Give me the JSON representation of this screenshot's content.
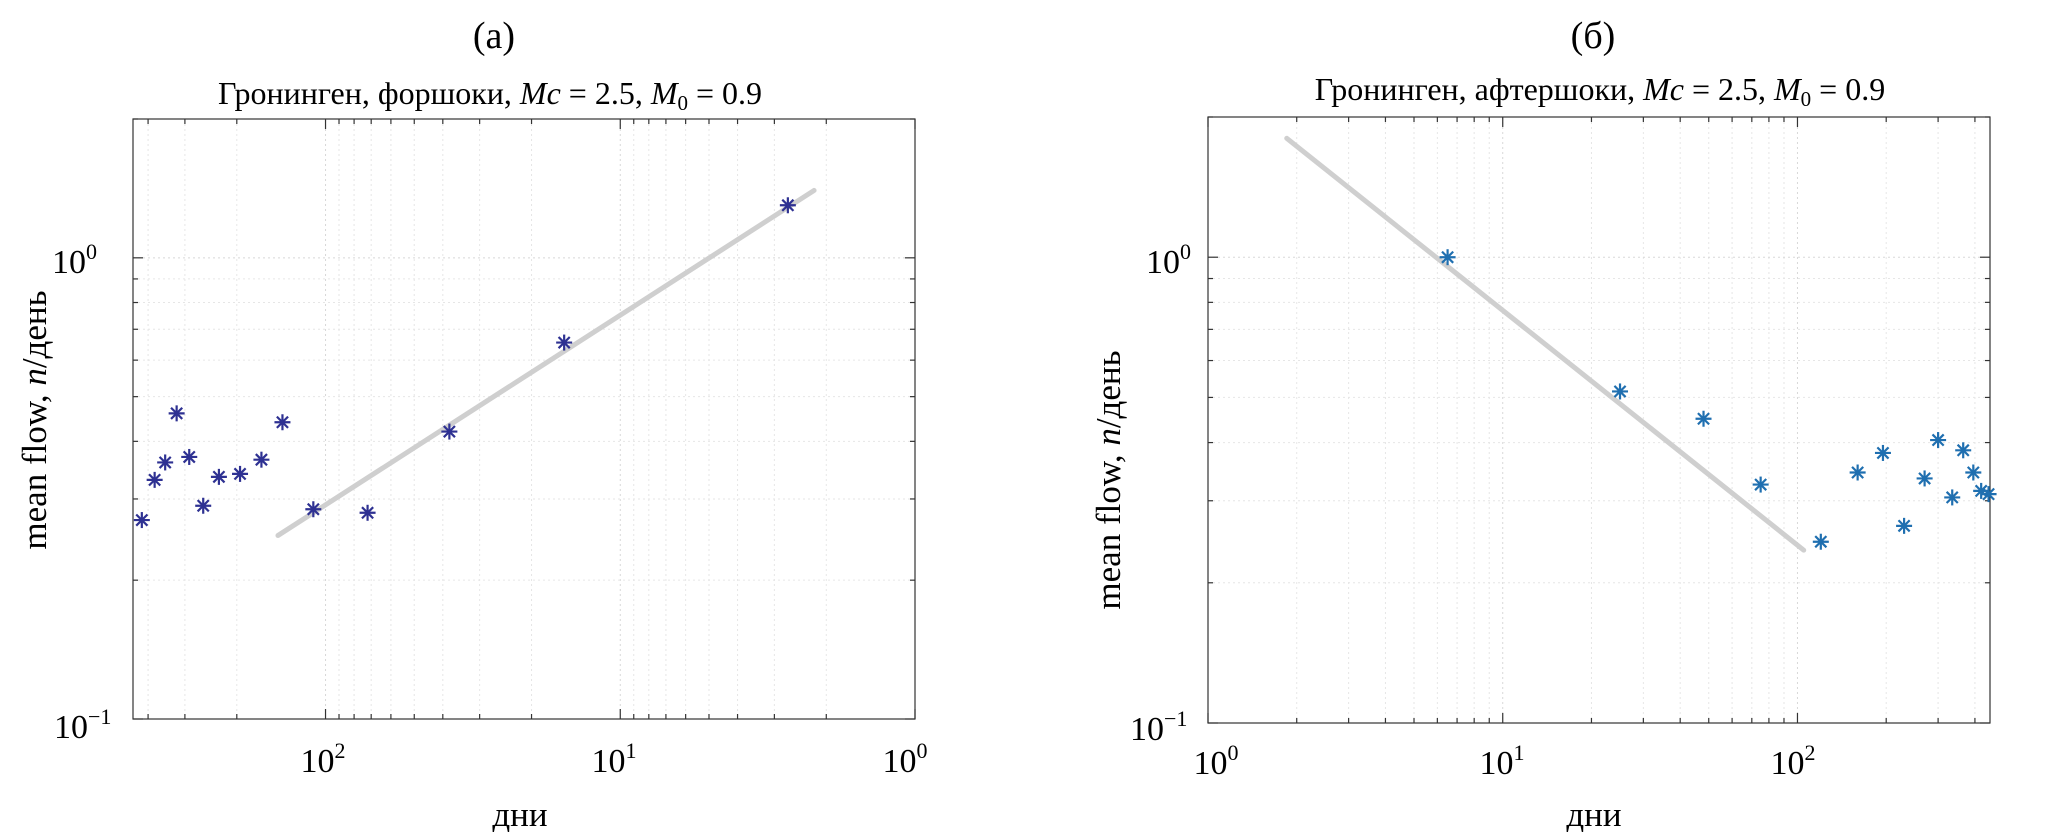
{
  "chart_data": [
    {
      "type": "scatter",
      "panel_label": "(а)",
      "title_parts": [
        "Гронинген, форшоки, ",
        "Mc",
        " = 2.5, ",
        "M",
        "0",
        " = 0.9"
      ],
      "xlabel": "дни",
      "ylabel_parts": [
        "mean flow, ",
        "n",
        "/день"
      ],
      "x_scale": "log",
      "x_reversed": true,
      "xlim": [
        450,
        1
      ],
      "y_scale": "log",
      "ylim": [
        0.1,
        2.0
      ],
      "x_ticks": [
        {
          "value": 100,
          "base": "10",
          "exp": "2"
        },
        {
          "value": 10,
          "base": "10",
          "exp": "1"
        },
        {
          "value": 1,
          "base": "10",
          "exp": "0"
        }
      ],
      "y_ticks": [
        {
          "value": 0.1,
          "base": "10",
          "exp": "−1"
        },
        {
          "value": 1,
          "base": "10",
          "exp": "0"
        }
      ],
      "grid": true,
      "marker_color": "#2e3192",
      "fit_color": "#cfcfcf",
      "points": [
        {
          "x": 420,
          "y": 0.27
        },
        {
          "x": 380,
          "y": 0.33
        },
        {
          "x": 350,
          "y": 0.36
        },
        {
          "x": 320,
          "y": 0.46
        },
        {
          "x": 290,
          "y": 0.37
        },
        {
          "x": 260,
          "y": 0.29
        },
        {
          "x": 230,
          "y": 0.335
        },
        {
          "x": 195,
          "y": 0.34
        },
        {
          "x": 165,
          "y": 0.365
        },
        {
          "x": 140,
          "y": 0.44
        },
        {
          "x": 110,
          "y": 0.285
        },
        {
          "x": 72,
          "y": 0.28
        },
        {
          "x": 38,
          "y": 0.42
        },
        {
          "x": 15.5,
          "y": 0.655
        },
        {
          "x": 2.7,
          "y": 1.3
        }
      ],
      "fit_line": [
        {
          "x": 145,
          "y": 0.25
        },
        {
          "x": 2.2,
          "y": 1.4
        }
      ]
    },
    {
      "type": "scatter",
      "panel_label": "(б)",
      "title_parts": [
        "Гронинген, афтершоки, ",
        "Mc",
        " = 2.5, ",
        "M",
        "0",
        " = 0.9"
      ],
      "xlabel": "дни",
      "ylabel_parts": [
        "mean flow, ",
        "n",
        "/день"
      ],
      "x_scale": "log",
      "x_reversed": false,
      "xlim": [
        1,
        450
      ],
      "y_scale": "log",
      "ylim": [
        0.1,
        2.0
      ],
      "x_ticks": [
        {
          "value": 1,
          "base": "10",
          "exp": "0"
        },
        {
          "value": 10,
          "base": "10",
          "exp": "1"
        },
        {
          "value": 100,
          "base": "10",
          "exp": "2"
        }
      ],
      "y_ticks": [
        {
          "value": 0.1,
          "base": "10",
          "exp": "−1"
        },
        {
          "value": 1,
          "base": "10",
          "exp": "0"
        }
      ],
      "grid": true,
      "marker_color": "#1f6fb0",
      "fit_color": "#cfcfcf",
      "points": [
        {
          "x": 6.5,
          "y": 1.0
        },
        {
          "x": 25,
          "y": 0.515
        },
        {
          "x": 48,
          "y": 0.45
        },
        {
          "x": 75,
          "y": 0.325
        },
        {
          "x": 120,
          "y": 0.245
        },
        {
          "x": 160,
          "y": 0.345
        },
        {
          "x": 195,
          "y": 0.38
        },
        {
          "x": 230,
          "y": 0.265
        },
        {
          "x": 270,
          "y": 0.335
        },
        {
          "x": 300,
          "y": 0.405
        },
        {
          "x": 335,
          "y": 0.305
        },
        {
          "x": 365,
          "y": 0.385
        },
        {
          "x": 395,
          "y": 0.345
        },
        {
          "x": 420,
          "y": 0.315
        },
        {
          "x": 445,
          "y": 0.31
        }
      ],
      "fit_line": [
        {
          "x": 1.85,
          "y": 1.8
        },
        {
          "x": 105,
          "y": 0.235
        }
      ]
    }
  ]
}
